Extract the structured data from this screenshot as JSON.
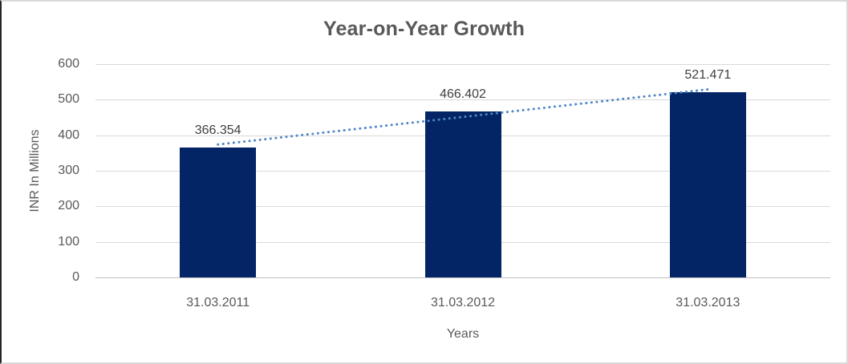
{
  "chart_data": {
    "type": "bar",
    "title": "Year-on-Year Growth",
    "xlabel": "Years",
    "ylabel": "INR In Millions",
    "categories": [
      "31.03.2011",
      "31.03.2012",
      "31.03.2013"
    ],
    "values": [
      366.354,
      466.402,
      521.471
    ],
    "data_labels": [
      "366.354",
      "466.402",
      "521.471"
    ],
    "ylim": [
      0,
      600
    ],
    "ytick_step": 100,
    "ytick_labels": [
      "0",
      "100",
      "200",
      "300",
      "400",
      "500",
      "600"
    ],
    "grid": true,
    "legend": "none",
    "trendline": {
      "kind": "linear",
      "style": "dotted"
    },
    "colors": {
      "bar": "#032565",
      "trendline": "#4e87c8",
      "gridline": "#d9d9d9",
      "axis_line": "#bfbfbf",
      "title_text": "#595959",
      "tick_text": "#595959",
      "data_label_text": "#404040"
    }
  }
}
